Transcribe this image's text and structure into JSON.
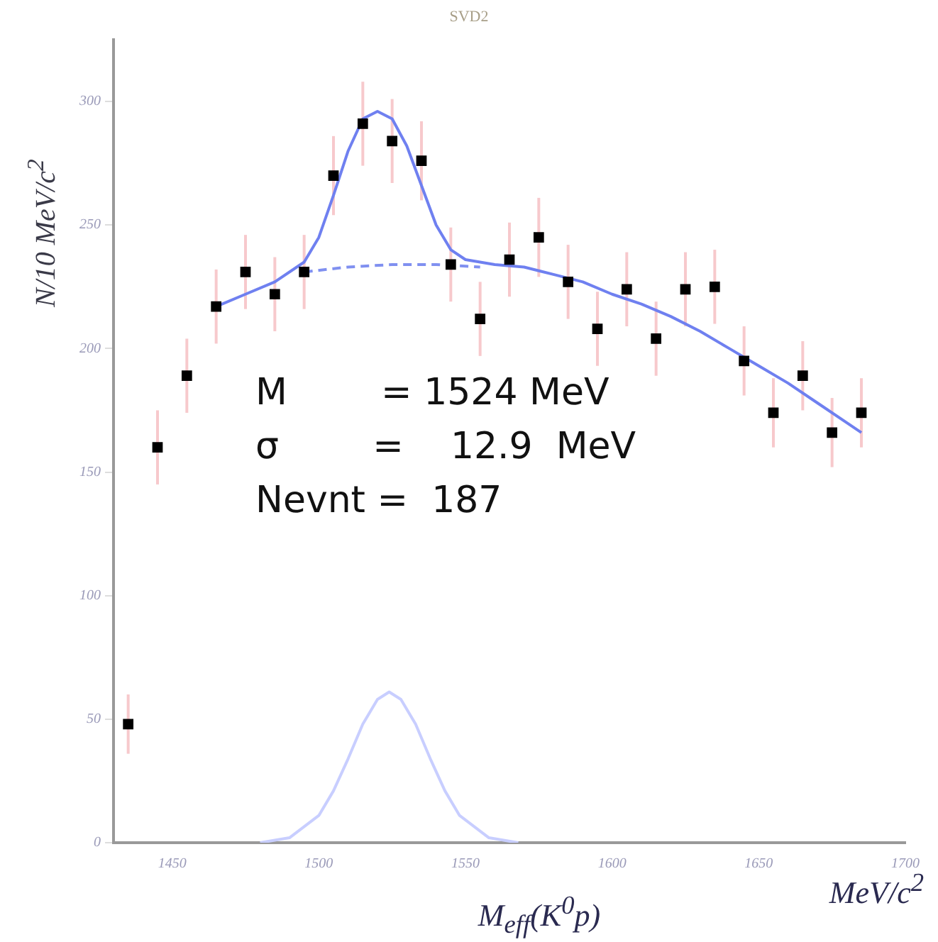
{
  "chart_data": {
    "type": "scatter",
    "title": "SVD2",
    "xlabel": "M$_{eff}$(K$^{0}$p)",
    "ylabel": "N/10  MeV/c$^{2}$",
    "annotations": [
      "M        = 1524 MeV",
      "σ        =    12.9  MeV",
      "Nevnt =  187",
      "MeV/c$^{2}$"
    ],
    "xlim": [
      1430,
      1700
    ],
    "xticks": [
      1450,
      1500,
      1550,
      1600,
      1650,
      1700
    ],
    "ylim": [
      0,
      325
    ],
    "yticks": [
      0,
      50,
      100,
      150,
      200,
      250,
      300
    ],
    "grid": false,
    "legend": false,
    "marker": "square",
    "series": [
      {
        "color": "#000000",
        "x": [
          1435,
          1445,
          1455,
          1465,
          1475,
          1485,
          1495,
          1505,
          1515,
          1525,
          1535,
          1545,
          1555,
          1565,
          1575,
          1585,
          1595,
          1605,
          1615,
          1625,
          1635,
          1645,
          1655,
          1665,
          1675,
          1685
        ],
        "values": [
          48,
          160,
          189,
          217,
          231,
          222,
          231,
          270,
          291,
          284,
          276,
          234,
          212,
          236,
          245,
          227,
          208,
          224,
          204,
          224,
          225,
          195,
          174,
          189,
          166,
          174
        ],
        "errors": [
          12,
          15,
          15,
          15,
          15,
          15,
          15,
          16,
          17,
          17,
          16,
          15,
          15,
          15,
          16,
          15,
          15,
          15,
          15,
          15,
          15,
          14,
          14,
          14,
          14,
          14
        ]
      },
      {
        "type": "line",
        "color": "#6f80f0",
        "marker": "none",
        "line_style": "solid",
        "x": [
          1465,
          1475,
          1485,
          1495,
          1500,
          1505,
          1510,
          1515,
          1520,
          1525,
          1530,
          1535,
          1540,
          1545,
          1550,
          1560,
          1570,
          1580,
          1590,
          1600,
          1610,
          1620,
          1630,
          1640,
          1650,
          1660,
          1670,
          1680,
          1685
        ],
        "values": [
          217,
          222,
          227,
          235,
          245,
          262,
          280,
          293,
          296,
          293,
          282,
          266,
          250,
          240,
          236,
          234,
          233,
          230,
          227,
          222,
          218,
          213,
          207,
          200,
          193,
          186,
          178,
          170,
          166
        ]
      },
      {
        "type": "line",
        "color": "#8090f0",
        "marker": "none",
        "line_style": "dashed",
        "x": [
          1495,
          1510,
          1525,
          1540,
          1555
        ],
        "values": [
          231,
          233,
          234,
          234,
          233
        ]
      },
      {
        "type": "line",
        "color": "#c8ceff",
        "marker": "none",
        "line_style": "solid",
        "x": [
          1480,
          1490,
          1500,
          1505,
          1510,
          1515,
          1520,
          1524,
          1528,
          1533,
          1538,
          1543,
          1548,
          1558,
          1568
        ],
        "values": [
          0,
          2,
          11,
          21,
          34,
          48,
          58,
          61,
          58,
          48,
          34,
          21,
          11,
          2,
          0
        ]
      }
    ]
  }
}
